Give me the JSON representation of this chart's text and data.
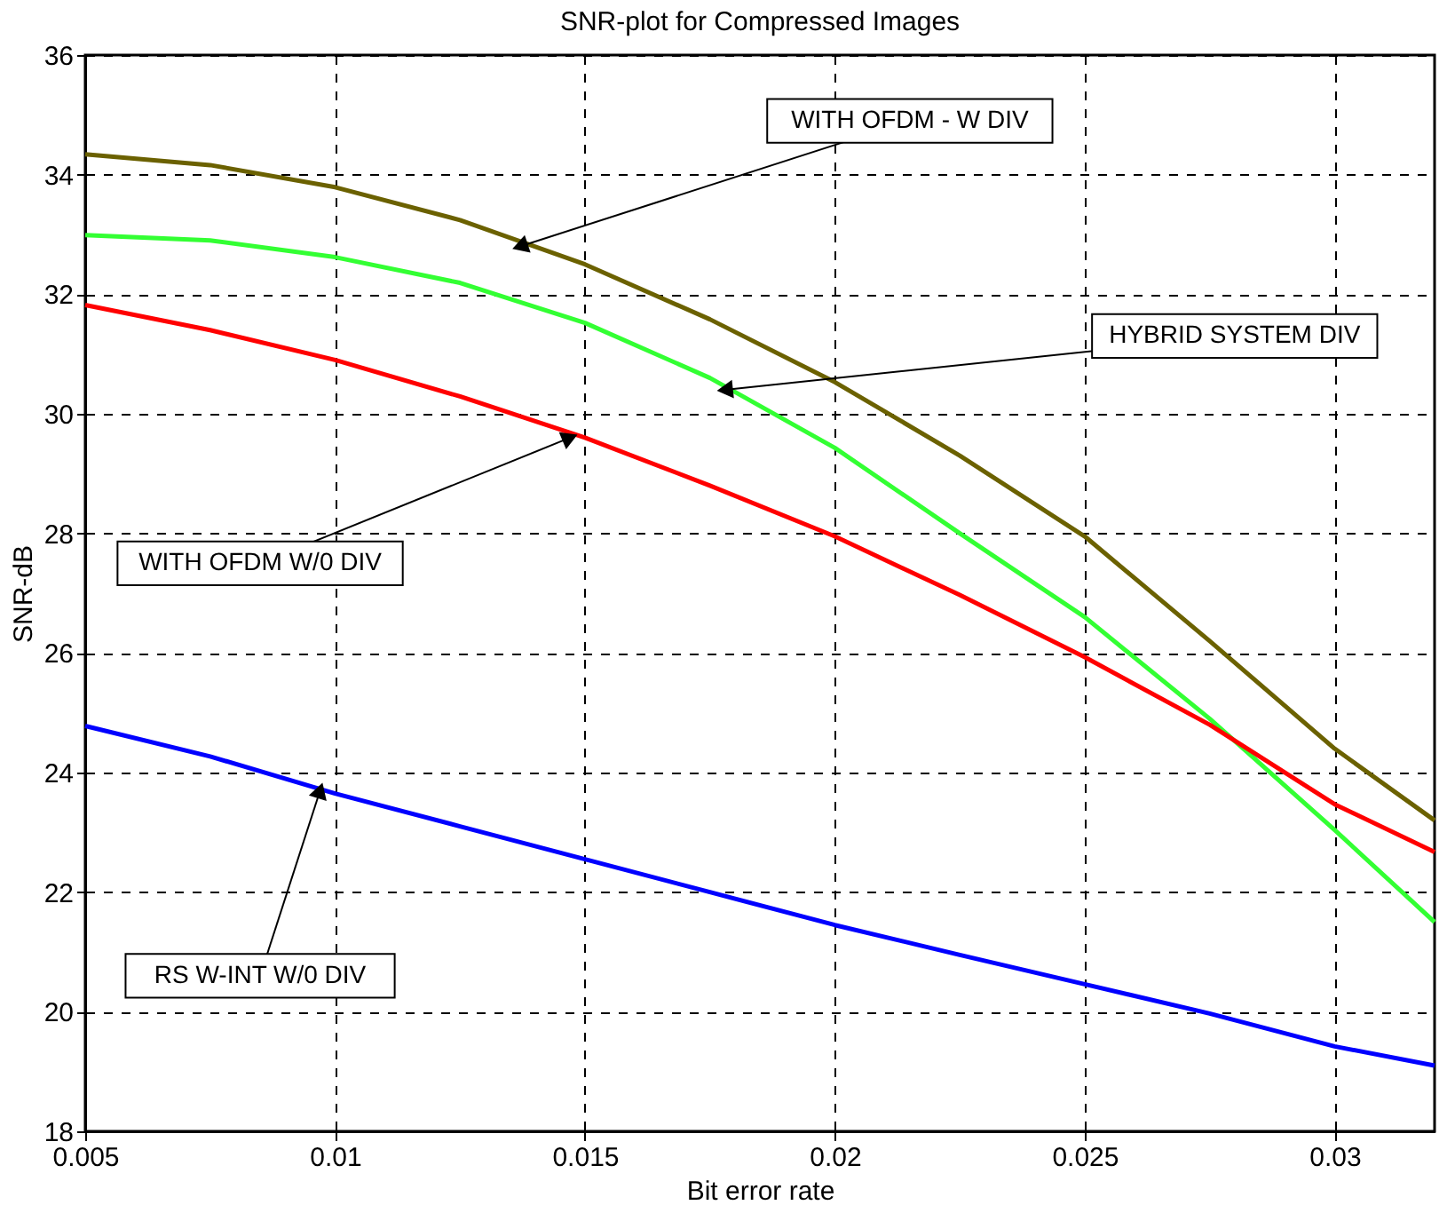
{
  "chart_data": {
    "type": "line",
    "title": "SNR-plot for Compressed Images",
    "xlabel": "Bit error rate",
    "ylabel": "SNR-dB",
    "x": [
      0.005,
      0.0075,
      0.01,
      0.0125,
      0.015,
      0.0175,
      0.02,
      0.0225,
      0.025,
      0.0275,
      0.03,
      0.032
    ],
    "series": [
      {
        "color": "#6b6100",
        "values": [
          34.34,
          34.16,
          33.79,
          33.24,
          32.5,
          31.58,
          30.53,
          29.3,
          27.95,
          26.2,
          24.4,
          23.2
        ]
      },
      {
        "color": "#33ff33",
        "values": [
          32.99,
          32.9,
          32.62,
          32.19,
          31.52,
          30.6,
          29.43,
          28.0,
          26.6,
          24.9,
          23.04,
          21.5
        ]
      },
      {
        "color": "#ff0000",
        "values": [
          31.82,
          31.4,
          30.9,
          30.29,
          29.6,
          28.8,
          27.95,
          26.97,
          25.93,
          24.8,
          23.47,
          22.67
        ]
      },
      {
        "color": "#0000ff",
        "values": [
          24.78,
          24.27,
          23.65,
          23.1,
          22.55,
          22.0,
          21.45,
          20.95,
          20.46,
          19.97,
          19.42,
          19.1
        ]
      }
    ],
    "annotations": [
      {
        "text": "WITH OFDM - W DIV",
        "x": 0.0137,
        "y": 32.8
      },
      {
        "text": "HYBRID SYSTEM DIV",
        "x": 0.0178,
        "y": 30.4
      },
      {
        "text": "WITH OFDM W/0 DIV",
        "x": 0.0147,
        "y": 29.6
      },
      {
        "text": "RS W-INT W/0 DIV",
        "x": 0.0097,
        "y": 23.7
      }
    ],
    "xlim": [
      0.005,
      0.032
    ],
    "xticks": [
      0.005,
      0.01,
      0.015,
      0.02,
      0.025,
      0.03
    ],
    "ylim": [
      18,
      36
    ],
    "yticks": [
      18,
      20,
      22,
      24,
      26,
      28,
      30,
      32,
      34,
      36
    ],
    "grid": true,
    "line_style": "solid",
    "marker": "none"
  }
}
